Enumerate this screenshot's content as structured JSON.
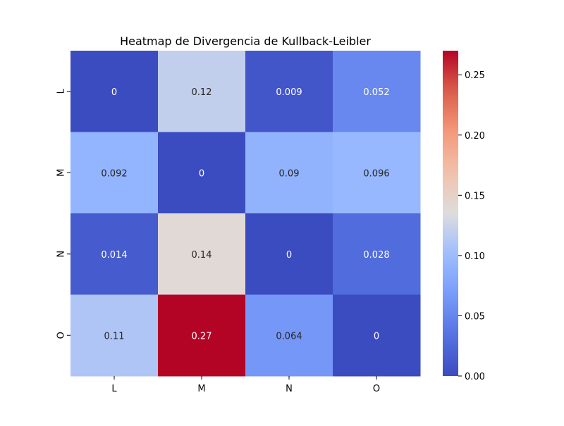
{
  "chart_data": {
    "type": "heatmap",
    "title": "Heatmap de Divergencia de Kullback-Leibler",
    "xlabel": "",
    "ylabel": "",
    "x_categories": [
      "L",
      "M",
      "N",
      "O"
    ],
    "y_categories": [
      "L",
      "M",
      "N",
      "O"
    ],
    "values": [
      [
        0,
        0.12,
        0.009,
        0.052
      ],
      [
        0.092,
        0,
        0.09,
        0.096
      ],
      [
        0.014,
        0.14,
        0,
        0.028
      ],
      [
        0.11,
        0.27,
        0.064,
        0
      ]
    ],
    "value_labels": [
      [
        "0",
        "0.12",
        "0.009",
        "0.052"
      ],
      [
        "0.092",
        "0",
        "0.09",
        "0.096"
      ],
      [
        "0.014",
        "0.14",
        "0",
        "0.028"
      ],
      [
        "0.11",
        "0.27",
        "0.064",
        "0"
      ]
    ],
    "colormap": "coolwarm",
    "vmin": 0,
    "vmax": 0.27,
    "colorbar": {
      "ticks": [
        0.0,
        0.05,
        0.1,
        0.15,
        0.2,
        0.25
      ],
      "tick_labels": [
        "0.00",
        "0.05",
        "0.10",
        "0.15",
        "0.20",
        "0.25"
      ]
    },
    "grid": false,
    "legend": "colorbar-right"
  }
}
